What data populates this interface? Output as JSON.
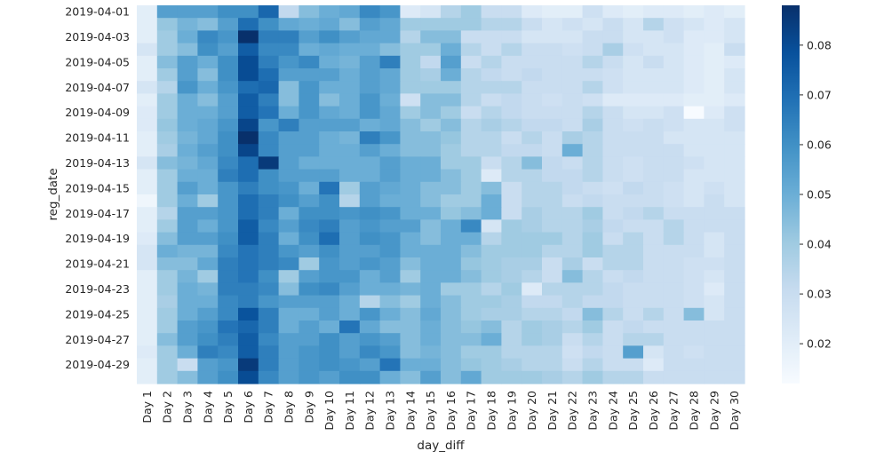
{
  "chart_data": {
    "type": "heatmap",
    "title": "",
    "xlabel": "day_diff",
    "ylabel": "reg_date",
    "colormap": "Blues",
    "color_min": 0.012,
    "color_max": 0.088,
    "colorbar_ticks": [
      0.02,
      0.03,
      0.04,
      0.05,
      0.06,
      0.07,
      0.08
    ],
    "colorbar_tick_labels": [
      "0.02",
      "0.03",
      "0.04",
      "0.05",
      "0.06",
      "0.07",
      "0.08"
    ],
    "colorbar_position": "right",
    "x_categories": [
      "Day 1",
      "Day 2",
      "Day 3",
      "Day 4",
      "Day 5",
      "Day 6",
      "Day 7",
      "Day 8",
      "Day 9",
      "Day 10",
      "Day 11",
      "Day 12",
      "Day 13",
      "Day 14",
      "Day 15",
      "Day 16",
      "Day 17",
      "Day 18",
      "Day 19",
      "Day 20",
      "Day 21",
      "Day 22",
      "Day 23",
      "Day 24",
      "Day 25",
      "Day 26",
      "Day 27",
      "Day 28",
      "Day 29",
      "Day 30"
    ],
    "y_categories": [
      "2019-04-01",
      "2019-04-02",
      "2019-04-03",
      "2019-04-04",
      "2019-04-05",
      "2019-04-06",
      "2019-04-07",
      "2019-04-08",
      "2019-04-09",
      "2019-04-10",
      "2019-04-11",
      "2019-04-12",
      "2019-04-13",
      "2019-04-14",
      "2019-04-15",
      "2019-04-16",
      "2019-04-17",
      "2019-04-18",
      "2019-04-19",
      "2019-04-20",
      "2019-04-21",
      "2019-04-22",
      "2019-04-23",
      "2019-04-24",
      "2019-04-25",
      "2019-04-26",
      "2019-04-27",
      "2019-04-28",
      "2019-04-29",
      "2019-04-30"
    ],
    "y_tick_labels": [
      "2019-04-01",
      "2019-04-03",
      "2019-04-05",
      "2019-04-07",
      "2019-04-09",
      "2019-04-11",
      "2019-04-13",
      "2019-04-15",
      "2019-04-17",
      "2019-04-19",
      "2019-04-21",
      "2019-04-23",
      "2019-04-25",
      "2019-04-27",
      "2019-04-29"
    ],
    "values": [
      [
        0.02,
        0.055,
        0.055,
        0.055,
        0.06,
        0.06,
        0.072,
        0.032,
        0.045,
        0.05,
        0.052,
        0.062,
        0.058,
        0.022,
        0.025,
        0.035,
        0.04,
        0.03,
        0.03,
        0.022,
        0.02,
        0.02,
        0.028,
        0.022,
        0.02,
        0.022,
        0.022,
        0.02,
        0.022,
        0.02
      ],
      [
        0.02,
        0.042,
        0.048,
        0.045,
        0.055,
        0.07,
        0.06,
        0.052,
        0.05,
        0.052,
        0.045,
        0.055,
        0.052,
        0.04,
        0.04,
        0.04,
        0.04,
        0.035,
        0.035,
        0.03,
        0.025,
        0.028,
        0.025,
        0.03,
        0.025,
        0.035,
        0.028,
        0.025,
        0.022,
        0.025
      ],
      [
        0.02,
        0.04,
        0.05,
        0.062,
        0.058,
        0.088,
        0.065,
        0.065,
        0.055,
        0.06,
        0.055,
        0.052,
        0.052,
        0.035,
        0.045,
        0.045,
        0.03,
        0.03,
        0.03,
        0.025,
        0.025,
        0.025,
        0.03,
        0.03,
        0.025,
        0.025,
        0.028,
        0.022,
        0.022,
        0.025
      ],
      [
        0.025,
        0.04,
        0.045,
        0.06,
        0.055,
        0.075,
        0.062,
        0.062,
        0.05,
        0.052,
        0.05,
        0.05,
        0.045,
        0.04,
        0.04,
        0.05,
        0.035,
        0.03,
        0.035,
        0.03,
        0.03,
        0.028,
        0.03,
        0.038,
        0.028,
        0.025,
        0.025,
        0.022,
        0.02,
        0.03
      ],
      [
        0.02,
        0.045,
        0.055,
        0.05,
        0.06,
        0.08,
        0.065,
        0.058,
        0.062,
        0.05,
        0.048,
        0.055,
        0.065,
        0.04,
        0.032,
        0.055,
        0.03,
        0.035,
        0.03,
        0.03,
        0.03,
        0.03,
        0.035,
        0.03,
        0.025,
        0.03,
        0.025,
        0.022,
        0.02,
        0.022
      ],
      [
        0.02,
        0.04,
        0.055,
        0.045,
        0.06,
        0.08,
        0.07,
        0.055,
        0.055,
        0.055,
        0.05,
        0.055,
        0.052,
        0.04,
        0.038,
        0.05,
        0.035,
        0.032,
        0.03,
        0.032,
        0.03,
        0.03,
        0.03,
        0.028,
        0.025,
        0.025,
        0.025,
        0.022,
        0.02,
        0.025
      ],
      [
        0.025,
        0.035,
        0.058,
        0.05,
        0.058,
        0.07,
        0.072,
        0.045,
        0.058,
        0.05,
        0.05,
        0.055,
        0.052,
        0.04,
        0.04,
        0.04,
        0.035,
        0.035,
        0.035,
        0.03,
        0.03,
        0.03,
        0.035,
        0.028,
        0.025,
        0.025,
        0.025,
        0.022,
        0.02,
        0.025
      ],
      [
        0.02,
        0.04,
        0.05,
        0.045,
        0.055,
        0.075,
        0.065,
        0.045,
        0.058,
        0.045,
        0.05,
        0.058,
        0.05,
        0.028,
        0.045,
        0.045,
        0.035,
        0.03,
        0.032,
        0.03,
        0.028,
        0.03,
        0.028,
        0.022,
        0.022,
        0.022,
        0.022,
        0.02,
        0.02,
        0.022
      ],
      [
        0.022,
        0.04,
        0.05,
        0.05,
        0.055,
        0.075,
        0.068,
        0.05,
        0.058,
        0.052,
        0.05,
        0.058,
        0.052,
        0.04,
        0.045,
        0.04,
        0.03,
        0.035,
        0.032,
        0.03,
        0.03,
        0.03,
        0.035,
        0.03,
        0.025,
        0.025,
        0.028,
        0.012,
        0.022,
        0.028
      ],
      [
        0.022,
        0.042,
        0.05,
        0.052,
        0.058,
        0.082,
        0.058,
        0.065,
        0.055,
        0.055,
        0.055,
        0.05,
        0.052,
        0.045,
        0.04,
        0.045,
        0.035,
        0.038,
        0.035,
        0.032,
        0.032,
        0.03,
        0.038,
        0.03,
        0.028,
        0.03,
        0.028,
        0.025,
        0.025,
        0.028
      ],
      [
        0.02,
        0.04,
        0.048,
        0.052,
        0.06,
        0.088,
        0.062,
        0.055,
        0.055,
        0.05,
        0.048,
        0.065,
        0.058,
        0.045,
        0.045,
        0.042,
        0.035,
        0.035,
        0.03,
        0.035,
        0.03,
        0.038,
        0.035,
        0.03,
        0.03,
        0.03,
        0.025,
        0.025,
        0.025,
        0.025
      ],
      [
        0.02,
        0.038,
        0.05,
        0.055,
        0.06,
        0.082,
        0.062,
        0.055,
        0.055,
        0.05,
        0.05,
        0.055,
        0.05,
        0.045,
        0.045,
        0.04,
        0.035,
        0.035,
        0.032,
        0.032,
        0.03,
        0.05,
        0.035,
        0.03,
        0.03,
        0.03,
        0.03,
        0.025,
        0.025,
        0.025
      ],
      [
        0.025,
        0.045,
        0.048,
        0.052,
        0.062,
        0.07,
        0.085,
        0.055,
        0.05,
        0.05,
        0.05,
        0.05,
        0.055,
        0.05,
        0.05,
        0.04,
        0.04,
        0.03,
        0.035,
        0.045,
        0.032,
        0.03,
        0.035,
        0.03,
        0.028,
        0.03,
        0.03,
        0.028,
        0.025,
        0.025
      ],
      [
        0.02,
        0.04,
        0.05,
        0.05,
        0.065,
        0.07,
        0.06,
        0.055,
        0.055,
        0.055,
        0.05,
        0.05,
        0.055,
        0.05,
        0.05,
        0.045,
        0.04,
        0.022,
        0.035,
        0.035,
        0.032,
        0.032,
        0.035,
        0.03,
        0.028,
        0.03,
        0.03,
        0.025,
        0.025,
        0.025
      ],
      [
        0.02,
        0.04,
        0.055,
        0.05,
        0.058,
        0.065,
        0.06,
        0.058,
        0.05,
        0.068,
        0.04,
        0.055,
        0.052,
        0.05,
        0.045,
        0.045,
        0.04,
        0.045,
        0.03,
        0.035,
        0.035,
        0.032,
        0.03,
        0.028,
        0.032,
        0.03,
        0.028,
        0.025,
        0.028,
        0.025
      ],
      [
        0.015,
        0.04,
        0.05,
        0.04,
        0.058,
        0.07,
        0.065,
        0.06,
        0.055,
        0.06,
        0.035,
        0.055,
        0.05,
        0.05,
        0.045,
        0.04,
        0.04,
        0.05,
        0.03,
        0.035,
        0.035,
        0.03,
        0.032,
        0.03,
        0.03,
        0.03,
        0.028,
        0.025,
        0.03,
        0.025
      ],
      [
        0.02,
        0.035,
        0.055,
        0.055,
        0.058,
        0.07,
        0.065,
        0.05,
        0.06,
        0.06,
        0.058,
        0.06,
        0.058,
        0.05,
        0.05,
        0.042,
        0.045,
        0.05,
        0.03,
        0.038,
        0.035,
        0.035,
        0.04,
        0.03,
        0.032,
        0.035,
        0.03,
        0.03,
        0.03,
        0.03
      ],
      [
        0.02,
        0.04,
        0.055,
        0.05,
        0.058,
        0.075,
        0.062,
        0.055,
        0.062,
        0.065,
        0.055,
        0.058,
        0.055,
        0.055,
        0.045,
        0.05,
        0.062,
        0.025,
        0.04,
        0.038,
        0.035,
        0.035,
        0.038,
        0.032,
        0.03,
        0.03,
        0.035,
        0.03,
        0.03,
        0.03
      ],
      [
        0.022,
        0.045,
        0.055,
        0.055,
        0.06,
        0.075,
        0.065,
        0.05,
        0.06,
        0.07,
        0.055,
        0.06,
        0.058,
        0.05,
        0.045,
        0.05,
        0.05,
        0.035,
        0.04,
        0.04,
        0.04,
        0.035,
        0.04,
        0.03,
        0.035,
        0.03,
        0.035,
        0.03,
        0.025,
        0.03
      ],
      [
        0.025,
        0.05,
        0.048,
        0.048,
        0.062,
        0.068,
        0.065,
        0.058,
        0.055,
        0.06,
        0.055,
        0.055,
        0.058,
        0.05,
        0.05,
        0.05,
        0.045,
        0.04,
        0.04,
        0.04,
        0.035,
        0.035,
        0.04,
        0.035,
        0.035,
        0.03,
        0.03,
        0.03,
        0.025,
        0.03
      ],
      [
        0.025,
        0.045,
        0.045,
        0.052,
        0.065,
        0.068,
        0.065,
        0.062,
        0.04,
        0.058,
        0.055,
        0.058,
        0.055,
        0.045,
        0.05,
        0.05,
        0.042,
        0.04,
        0.038,
        0.038,
        0.03,
        0.038,
        0.03,
        0.035,
        0.035,
        0.03,
        0.03,
        0.028,
        0.028,
        0.03
      ],
      [
        0.02,
        0.04,
        0.048,
        0.04,
        0.065,
        0.068,
        0.06,
        0.04,
        0.055,
        0.058,
        0.058,
        0.05,
        0.055,
        0.04,
        0.05,
        0.05,
        0.045,
        0.04,
        0.038,
        0.035,
        0.03,
        0.045,
        0.035,
        0.03,
        0.032,
        0.03,
        0.03,
        0.028,
        0.025,
        0.03
      ],
      [
        0.02,
        0.04,
        0.05,
        0.048,
        0.065,
        0.065,
        0.062,
        0.045,
        0.06,
        0.062,
        0.055,
        0.05,
        0.05,
        0.048,
        0.05,
        0.04,
        0.04,
        0.035,
        0.04,
        0.022,
        0.035,
        0.035,
        0.035,
        0.032,
        0.03,
        0.03,
        0.03,
        0.028,
        0.022,
        0.03
      ],
      [
        0.02,
        0.038,
        0.05,
        0.05,
        0.062,
        0.065,
        0.058,
        0.055,
        0.055,
        0.055,
        0.05,
        0.035,
        0.045,
        0.04,
        0.05,
        0.045,
        0.04,
        0.04,
        0.038,
        0.032,
        0.032,
        0.035,
        0.032,
        0.032,
        0.03,
        0.03,
        0.03,
        0.028,
        0.025,
        0.03
      ],
      [
        0.02,
        0.04,
        0.05,
        0.055,
        0.062,
        0.078,
        0.065,
        0.05,
        0.05,
        0.055,
        0.05,
        0.058,
        0.05,
        0.045,
        0.052,
        0.045,
        0.04,
        0.038,
        0.038,
        0.035,
        0.035,
        0.032,
        0.045,
        0.035,
        0.03,
        0.035,
        0.03,
        0.045,
        0.025,
        0.03
      ],
      [
        0.02,
        0.04,
        0.055,
        0.058,
        0.068,
        0.072,
        0.065,
        0.05,
        0.055,
        0.05,
        0.068,
        0.052,
        0.045,
        0.045,
        0.05,
        0.045,
        0.042,
        0.045,
        0.035,
        0.04,
        0.038,
        0.035,
        0.04,
        0.03,
        0.032,
        0.03,
        0.03,
        0.03,
        0.03,
        0.03
      ],
      [
        0.02,
        0.045,
        0.055,
        0.06,
        0.065,
        0.075,
        0.062,
        0.055,
        0.055,
        0.06,
        0.055,
        0.058,
        0.055,
        0.045,
        0.05,
        0.045,
        0.045,
        0.05,
        0.035,
        0.04,
        0.038,
        0.03,
        0.035,
        0.03,
        0.035,
        0.035,
        0.03,
        0.03,
        0.03,
        0.03
      ],
      [
        0.022,
        0.04,
        0.05,
        0.065,
        0.062,
        0.075,
        0.065,
        0.055,
        0.058,
        0.06,
        0.055,
        0.062,
        0.058,
        0.045,
        0.048,
        0.045,
        0.04,
        0.04,
        0.035,
        0.035,
        0.035,
        0.028,
        0.032,
        0.03,
        0.055,
        0.025,
        0.03,
        0.028,
        0.03,
        0.03
      ],
      [
        0.02,
        0.04,
        0.03,
        0.055,
        0.058,
        0.085,
        0.065,
        0.055,
        0.058,
        0.06,
        0.058,
        0.055,
        0.068,
        0.05,
        0.05,
        0.045,
        0.042,
        0.04,
        0.038,
        0.035,
        0.035,
        0.03,
        0.035,
        0.03,
        0.03,
        0.022,
        0.03,
        0.03,
        0.03,
        0.03
      ],
      [
        0.02,
        0.04,
        0.045,
        0.055,
        0.06,
        0.08,
        0.062,
        0.055,
        0.058,
        0.055,
        0.06,
        0.06,
        0.05,
        0.045,
        0.055,
        0.045,
        0.052,
        0.04,
        0.04,
        0.04,
        0.038,
        0.035,
        0.04,
        0.035,
        0.035,
        0.03,
        0.03,
        0.03,
        0.03,
        0.03
      ]
    ]
  }
}
